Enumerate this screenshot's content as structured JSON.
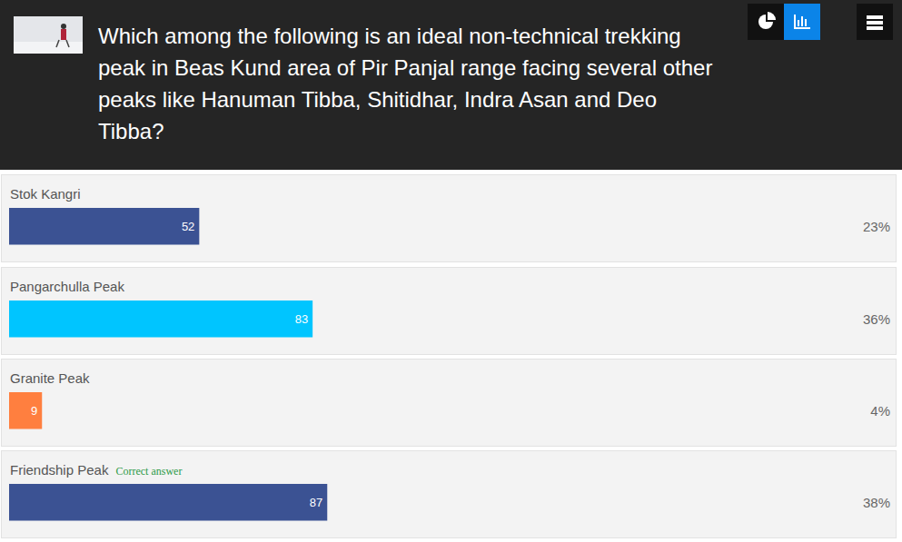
{
  "chart_data": {
    "type": "bar",
    "orientation": "horizontal",
    "title": "Which among the following is an ideal non-technical trekking peak in Beas Kund area of Pir Panjal range facing several other peaks like Hanuman Tibba, Shitidhar, Indra Asan and Deo Tibba?",
    "categories": [
      "Stok Kangri",
      "Pangarchulla Peak",
      "Granite Peak",
      "Friendship Peak"
    ],
    "values": [
      52,
      83,
      9,
      87
    ],
    "colors": [
      "#3b5293",
      "#00c5ff",
      "#ff7f3f",
      "#3b5293"
    ],
    "xlim": [
      0,
      231
    ],
    "data_labels": true,
    "tick_labels": false,
    "percentages": [
      {
        "value": 23,
        "label": "23%"
      },
      {
        "value": 36,
        "label": "36%"
      },
      {
        "value": 4,
        "label": "4%"
      },
      {
        "value": 38,
        "label": "38%"
      }
    ],
    "annotations": [
      {
        "category": "Friendship Peak",
        "text": "Correct answer"
      }
    ]
  }
}
